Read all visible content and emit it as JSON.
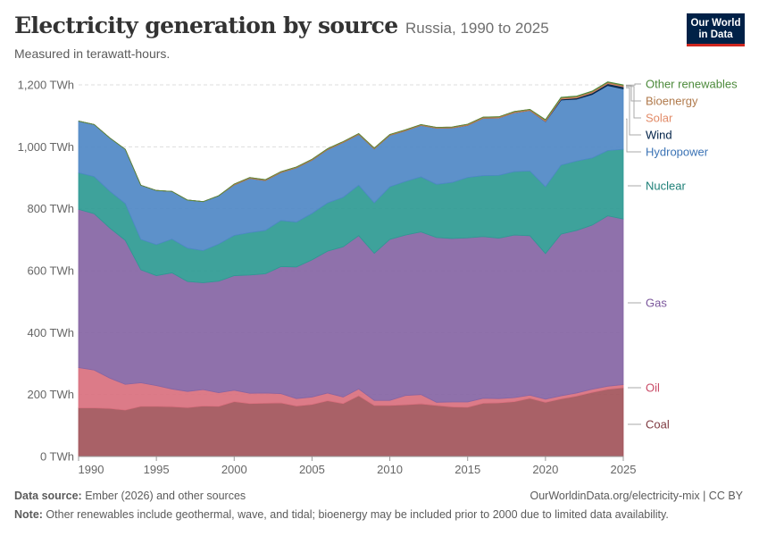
{
  "header": {
    "title": "Electricity generation by source",
    "subtitle_inline": "Russia, 1990 to 2025",
    "measured": "Measured in terawatt-hours."
  },
  "logo": {
    "line1": "Our World",
    "line2": "in Data"
  },
  "footer": {
    "source_label": "Data source:",
    "source_text": " Ember (2026) and other sources",
    "url": "OurWorldinData.org/electricity-mix | CC BY",
    "note_label": "Note:",
    "note_text": " Other renewables include geothermal, wave, and tidal; bioenergy may be included prior to 2000 due to limited data availability."
  },
  "chart_data": {
    "type": "area",
    "stacked": true,
    "unit": "TWh",
    "x": [
      1990,
      1991,
      1992,
      1993,
      1994,
      1995,
      1996,
      1997,
      1998,
      1999,
      2000,
      2001,
      2002,
      2003,
      2004,
      2005,
      2006,
      2007,
      2008,
      2009,
      2010,
      2011,
      2012,
      2013,
      2014,
      2015,
      2016,
      2017,
      2018,
      2019,
      2020,
      2021,
      2022,
      2023,
      2024,
      2025
    ],
    "xlim": [
      1990,
      2025
    ],
    "ylim": [
      0,
      1200
    ],
    "x_ticks": [
      "1990",
      "1995",
      "2000",
      "2005",
      "2010",
      "2015",
      "2020",
      "2025"
    ],
    "y_ticks": [
      "0 TWh",
      "200 TWh",
      "400 TWh",
      "600 TWh",
      "800 TWh",
      "1,000 TWh",
      "1,200 TWh"
    ],
    "y_tick_values": [
      0,
      200,
      400,
      600,
      800,
      1000,
      1200
    ],
    "grid": "horizontal dashed",
    "legend": "right",
    "series": [
      {
        "name": "Coal",
        "color": "#a2545a",
        "values": [
          157,
          157,
          155,
          150,
          162,
          162,
          161,
          158,
          163,
          162,
          177,
          171,
          172,
          173,
          163,
          168,
          180,
          171,
          196,
          165,
          165,
          167,
          170,
          165,
          160,
          159,
          172,
          173,
          177,
          188,
          175,
          186,
          195,
          207,
          217,
          222
        ]
      },
      {
        "name": "Oil",
        "color": "#d9707e",
        "values": [
          130,
          122,
          98,
          83,
          76,
          67,
          57,
          52,
          53,
          44,
          37,
          33,
          33,
          30,
          24,
          24,
          25,
          21,
          22,
          16,
          16,
          30,
          30,
          10,
          16,
          17,
          16,
          14,
          13,
          10,
          10,
          10,
          10,
          10,
          10,
          10
        ]
      },
      {
        "name": "Gas",
        "color": "#8665a4",
        "values": [
          511,
          505,
          485,
          465,
          365,
          355,
          375,
          355,
          345,
          360,
          370,
          382,
          385,
          410,
          425,
          443,
          458,
          485,
          495,
          475,
          520,
          518,
          525,
          532,
          528,
          530,
          522,
          518,
          525,
          515,
          470,
          522,
          525,
          530,
          550,
          535
        ]
      },
      {
        "name": "Nuclear",
        "color": "#2e9a93",
        "values": [
          118,
          120,
          119,
          119,
          98,
          100,
          109,
          108,
          104,
          120,
          130,
          137,
          140,
          149,
          145,
          150,
          156,
          160,
          163,
          163,
          170,
          173,
          178,
          172,
          181,
          195,
          197,
          203,
          205,
          209,
          216,
          223,
          224,
          217,
          211,
          225
        ]
      },
      {
        "name": "Hydropower",
        "color": "#4f88c6",
        "values": [
          167,
          168,
          172,
          175,
          175,
          175,
          154,
          155,
          158,
          156,
          163,
          175,
          161,
          155,
          175,
          172,
          172,
          177,
          164,
          174,
          166,
          164,
          166,
          181,
          176,
          168,
          185,
          185,
          190,
          195,
          210,
          210,
          200,
          205,
          210,
          195
        ]
      },
      {
        "name": "Wind",
        "color": "#002147",
        "values": [
          0,
          0,
          0,
          0,
          0,
          0,
          0,
          0,
          0,
          0,
          0,
          0,
          0,
          0,
          0,
          0,
          0,
          0,
          0,
          0,
          0,
          0,
          0,
          0,
          0,
          0,
          0,
          0,
          0,
          0,
          1,
          3,
          4,
          5,
          6,
          7
        ]
      },
      {
        "name": "Solar",
        "color": "#e28b68",
        "values": [
          0,
          0,
          0,
          0,
          0,
          0,
          0,
          0,
          0,
          0,
          0,
          0,
          0,
          0,
          0,
          0,
          0,
          0,
          0,
          0,
          0,
          0,
          0,
          0,
          0,
          1,
          1,
          1,
          1,
          1,
          2,
          2,
          2,
          2,
          2,
          2
        ]
      },
      {
        "name": "Bioenergy",
        "color": "#b07a4c",
        "values": [
          0,
          0,
          0,
          0,
          0,
          0,
          0,
          0,
          0,
          0,
          3,
          3,
          3,
          3,
          3,
          3,
          3,
          3,
          3,
          3,
          3,
          3,
          3,
          3,
          3,
          3,
          3,
          3,
          3,
          3,
          3,
          3,
          3,
          3,
          3,
          3
        ]
      },
      {
        "name": "Other renewables",
        "color": "#4c8a3b",
        "values": [
          0,
          0,
          0,
          0,
          0,
          0,
          0,
          0,
          0,
          0,
          0,
          0,
          0,
          0,
          0,
          0,
          0,
          0,
          0,
          0,
          0,
          0,
          0,
          0,
          0,
          0,
          0,
          0,
          0,
          0,
          1,
          1,
          1,
          1,
          1,
          1
        ]
      }
    ],
    "legend_label_colors": {
      "Other renewables": "#4c8a3b",
      "Bioenergy": "#b07a4c",
      "Solar": "#e28b68",
      "Wind": "#002147",
      "Hydropower": "#3b73b5",
      "Nuclear": "#1e8078",
      "Gas": "#7b579c",
      "Oil": "#c94a66",
      "Coal": "#7f3b41"
    }
  }
}
